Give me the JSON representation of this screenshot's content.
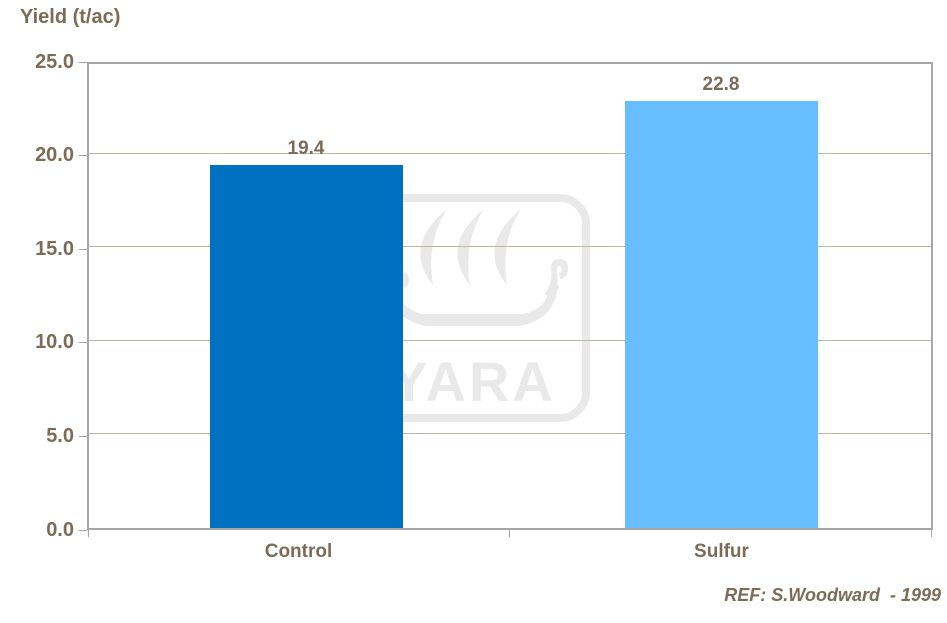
{
  "title": "Yield (t/ac)",
  "chart_data": {
    "type": "bar",
    "categories": [
      "Control",
      "Sulfur"
    ],
    "values": [
      19.4,
      22.8
    ],
    "value_labels": [
      "19.4",
      "22.8"
    ],
    "bar_colors": [
      "#0070C0",
      "#66BEFF"
    ],
    "title": "Yield (t/ac)",
    "xlabel": "",
    "ylabel": "Yield (t/ac)",
    "ylim": [
      0,
      25
    ],
    "ytick_interval": 5,
    "ytick_labels": [
      "25.0",
      "20.0",
      "15.0",
      "10.0",
      "5.0",
      "0.0"
    ],
    "grid": "horizontal",
    "legend": "none"
  },
  "annotations": {
    "reference": "REF: S.Woodward  - 1999"
  },
  "watermark": {
    "text": "YARA",
    "color": "#E9E9E9"
  },
  "colors": {
    "text": "#7C6B57",
    "gridline": "#BFB4A8",
    "axis": "#A6A6A6",
    "background": "#FFFFFF"
  }
}
